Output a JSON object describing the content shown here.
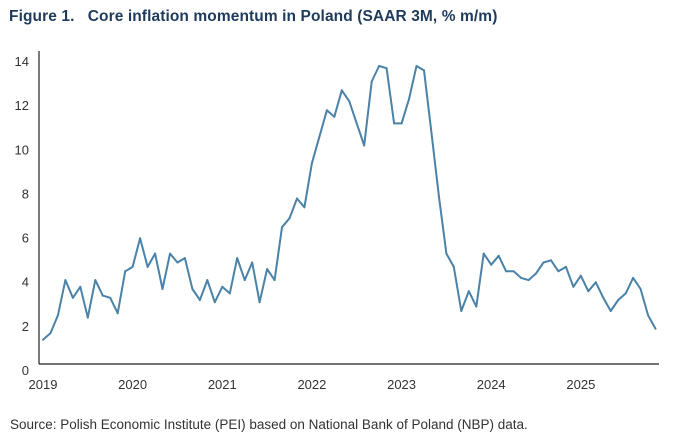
{
  "title": "Figure 1.   Core inflation momentum in Poland (SAAR 3M, % m/m)",
  "source": "Source: Polish Economic Institute (PEI) based on National Bank of Poland (NBP) data.",
  "colors": {
    "line": "#4a82a8",
    "title": "#1f3b5c",
    "axis": "#222222"
  },
  "chart_data": {
    "type": "line",
    "title": "Core inflation momentum in Poland (SAAR 3M, % m/m)",
    "xlabel": "",
    "ylabel": "",
    "ylim": [
      0,
      14
    ],
    "yticks": [
      0,
      2,
      4,
      6,
      8,
      10,
      12,
      14
    ],
    "xticks": [
      "2019",
      "2020",
      "2021",
      "2022",
      "2023",
      "2024",
      "2025"
    ],
    "x_start": "2019-01",
    "x_frequency": "monthly",
    "grid": false,
    "legend": "none",
    "series": [
      {
        "name": "Core inflation momentum (SAAR 3M)",
        "values": [
          1.1,
          1.4,
          2.2,
          3.8,
          3.0,
          3.5,
          2.1,
          3.8,
          3.1,
          3.0,
          2.3,
          4.2,
          4.4,
          5.7,
          4.4,
          5.0,
          3.4,
          5.0,
          4.6,
          4.8,
          3.4,
          2.9,
          3.8,
          2.8,
          3.5,
          3.2,
          4.8,
          3.8,
          4.6,
          2.8,
          4.3,
          3.8,
          6.2,
          6.6,
          7.5,
          7.1,
          9.1,
          10.3,
          11.5,
          11.2,
          12.4,
          11.9,
          10.9,
          9.9,
          12.8,
          13.5,
          13.4,
          10.9,
          10.9,
          12.0,
          13.5,
          13.3,
          10.5,
          7.6,
          5.0,
          4.4,
          2.4,
          3.3,
          2.6,
          5.0,
          4.5,
          4.9,
          4.2,
          4.2,
          3.9,
          3.8,
          4.1,
          4.6,
          4.7,
          4.2,
          4.4,
          3.5,
          4.0,
          3.3,
          3.7,
          3.0,
          2.4,
          2.9,
          3.2,
          3.9,
          3.4,
          2.2,
          1.6
        ]
      }
    ]
  }
}
